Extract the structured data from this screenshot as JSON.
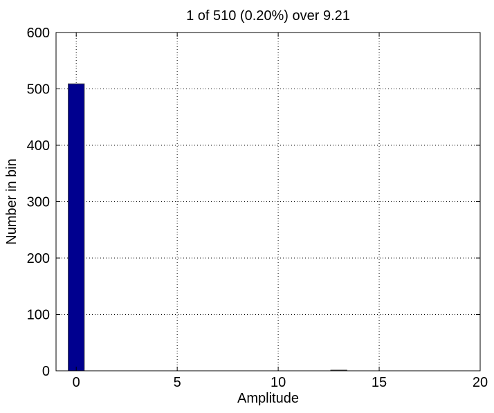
{
  "chart_data": {
    "type": "bar",
    "title": "1 of 510 (0.20%) over 9.21",
    "xlabel": "Amplitude",
    "ylabel": "Number in bin",
    "xlim": [
      -1,
      20
    ],
    "ylim": [
      0,
      600
    ],
    "xticks": [
      0,
      5,
      10,
      15,
      20
    ],
    "yticks": [
      0,
      100,
      200,
      300,
      400,
      500,
      600
    ],
    "grid": true,
    "bar_width": 0.8,
    "bars": [
      {
        "x": 0,
        "value": 509
      },
      {
        "x": 13,
        "value": 1
      }
    ],
    "colors": {
      "bar_fill": "#00008F",
      "bar_edge": "#444444",
      "axis": "#000000",
      "grid": "#000000"
    }
  }
}
